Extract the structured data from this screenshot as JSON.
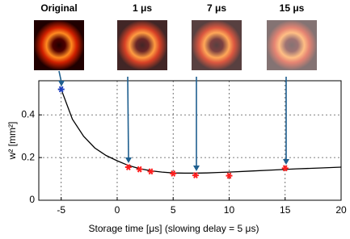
{
  "chart_data": {
    "type": "scatter",
    "xlabel": "Storage time [μs] (slowing delay = 5 μs)",
    "ylabel": "w² [mm²]",
    "xlim": [
      -7,
      20
    ],
    "ylim": [
      0,
      0.56
    ],
    "xticks": [
      -5,
      0,
      5,
      10,
      15,
      20
    ],
    "yticks": [
      0,
      0.2,
      0.4
    ],
    "grid": true,
    "panels": [
      "Original",
      "1 μs",
      "7 μs",
      "15 μs"
    ],
    "series": [
      {
        "style": "line",
        "color": "#000000",
        "x": [
          -5,
          -4,
          -3,
          -2,
          -1,
          0,
          1,
          2,
          3,
          4,
          5,
          6,
          7,
          8,
          9,
          10,
          12,
          14,
          16,
          18,
          20
        ],
        "values": [
          0.52,
          0.38,
          0.3,
          0.245,
          0.21,
          0.185,
          0.163,
          0.148,
          0.138,
          0.132,
          0.128,
          0.127,
          0.127,
          0.128,
          0.13,
          0.132,
          0.137,
          0.142,
          0.147,
          0.151,
          0.155
        ]
      },
      {
        "style": "star",
        "color": "#1f3fbf",
        "x": [
          -5
        ],
        "values": [
          0.52
        ]
      },
      {
        "style": "star",
        "color": "#ff2020",
        "x": [
          1,
          2,
          3,
          5,
          7,
          10,
          15
        ],
        "values": [
          0.155,
          0.145,
          0.135,
          0.125,
          0.117,
          0.115,
          0.15
        ]
      }
    ]
  }
}
